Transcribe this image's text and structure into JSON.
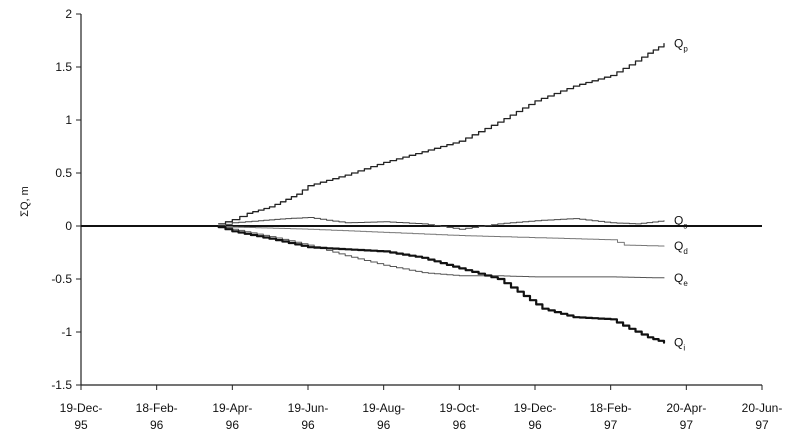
{
  "chart_data": {
    "type": "line",
    "ylabel": "ΣQ, m",
    "ylim": [
      -1.5,
      2
    ],
    "y_ticks": [
      "2",
      "1.5",
      "1",
      "0.5",
      "0",
      "-0.5",
      "-1",
      "-1.5"
    ],
    "y_tick_values": [
      2,
      1.5,
      1,
      0.5,
      0,
      -0.5,
      -1,
      -1.5
    ],
    "x_ticks": [
      {
        "line1": "19-Dec-",
        "line2": "95"
      },
      {
        "line1": "18-Feb-",
        "line2": "96"
      },
      {
        "line1": "19-Apr-",
        "line2": "96"
      },
      {
        "line1": "19-Jun-",
        "line2": "96"
      },
      {
        "line1": "19-Aug-",
        "line2": "96"
      },
      {
        "line1": "19-Oct-",
        "line2": "96"
      },
      {
        "line1": "19-Dec-",
        "line2": "96"
      },
      {
        "line1": "18-Feb-",
        "line2": "97"
      },
      {
        "line1": "20-Apr-",
        "line2": "97"
      },
      {
        "line1": "20-Jun-",
        "line2": "97"
      }
    ],
    "x_tick_values": [
      "1995-12-19",
      "1996-02-18",
      "1996-04-19",
      "1996-06-19",
      "1996-08-19",
      "1996-10-19",
      "1996-12-19",
      "1997-02-18",
      "1997-04-20",
      "1997-06-20"
    ],
    "xlim": [
      "1995-12-19",
      "1997-06-20"
    ],
    "grid": false,
    "series": [
      {
        "name": "Q",
        "subscript": "p",
        "color": "#222222",
        "width": 1.3,
        "x": [
          "1996-04-08",
          "1996-04-19",
          "1996-05-01",
          "1996-05-19",
          "1996-06-10",
          "1996-06-19",
          "1996-07-19",
          "1996-08-19",
          "1996-09-19",
          "1996-10-19",
          "1996-11-19",
          "1996-12-19",
          "1997-01-19",
          "1997-02-18",
          "1997-03-05",
          "1997-03-20",
          "1997-04-02"
        ],
        "y": [
          0.02,
          0.06,
          0.12,
          0.18,
          0.3,
          0.38,
          0.48,
          0.6,
          0.7,
          0.8,
          0.98,
          1.18,
          1.32,
          1.42,
          1.52,
          1.63,
          1.72
        ]
      },
      {
        "name": "Q",
        "subscript": "s",
        "color": "#444444",
        "width": 1.0,
        "x": [
          "1996-04-08",
          "1996-04-19",
          "1996-05-10",
          "1996-06-01",
          "1996-06-19",
          "1996-07-19",
          "1996-08-19",
          "1996-09-19",
          "1996-10-19",
          "1996-11-19",
          "1996-12-19",
          "1997-01-19",
          "1997-02-18",
          "1997-03-10",
          "1997-04-02"
        ],
        "y": [
          0.0,
          0.03,
          0.05,
          0.07,
          0.08,
          0.03,
          0.04,
          0.02,
          -0.03,
          0.02,
          0.05,
          0.07,
          0.03,
          0.02,
          0.05
        ]
      },
      {
        "name": "Q",
        "subscript": "d",
        "color": "#777777",
        "width": 1.0,
        "x": [
          "1996-04-08",
          "1996-04-19",
          "1996-06-19",
          "1996-08-19",
          "1996-10-19",
          "1996-12-19",
          "1997-02-18",
          "1997-03-01",
          "1997-04-02"
        ],
        "y": [
          0.0,
          -0.01,
          -0.03,
          -0.06,
          -0.09,
          -0.11,
          -0.13,
          -0.18,
          -0.19
        ]
      },
      {
        "name": "Q",
        "subscript": "e",
        "color": "#555555",
        "width": 1.0,
        "x": [
          "1996-04-08",
          "1996-04-19",
          "1996-05-19",
          "1996-06-19",
          "1996-07-19",
          "1996-08-19",
          "1996-09-19",
          "1996-10-19",
          "1996-11-19",
          "1996-12-19",
          "1997-02-18",
          "1997-04-02"
        ],
        "y": [
          0.0,
          -0.03,
          -0.1,
          -0.18,
          -0.28,
          -0.37,
          -0.44,
          -0.47,
          -0.47,
          -0.48,
          -0.48,
          -0.49
        ]
      },
      {
        "name": "Q",
        "subscript": "i",
        "color": "#111111",
        "width": 2.2,
        "x": [
          "1996-04-08",
          "1996-04-19",
          "1996-05-19",
          "1996-06-19",
          "1996-07-19",
          "1996-08-19",
          "1996-09-19",
          "1996-10-19",
          "1996-11-19",
          "1996-12-05",
          "1996-12-25",
          "1997-01-19",
          "1997-02-18",
          "1997-03-05",
          "1997-03-20",
          "1997-04-02"
        ],
        "y": [
          -0.01,
          -0.05,
          -0.12,
          -0.2,
          -0.22,
          -0.24,
          -0.3,
          -0.4,
          -0.5,
          -0.62,
          -0.78,
          -0.86,
          -0.88,
          -0.97,
          -1.05,
          -1.1
        ]
      }
    ]
  }
}
